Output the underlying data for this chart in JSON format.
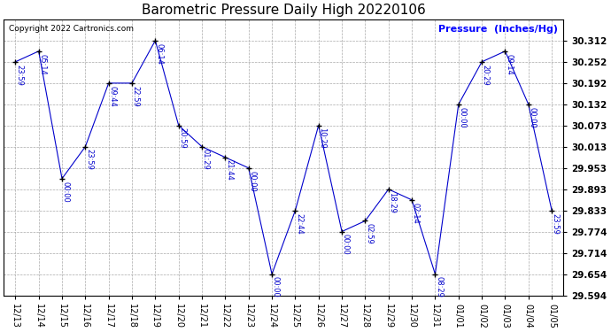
{
  "title": "Barometric Pressure Daily High 20220106",
  "ylabel": "Pressure  (Inches/Hg)",
  "copyright": "Copyright 2022 Cartronics.com",
  "x_labels": [
    "12/13",
    "12/14",
    "12/15",
    "12/16",
    "12/17",
    "12/18",
    "12/19",
    "12/20",
    "12/21",
    "12/22",
    "12/23",
    "12/24",
    "12/25",
    "12/26",
    "12/27",
    "12/28",
    "12/29",
    "12/30",
    "12/31",
    "01/01",
    "01/02",
    "01/03",
    "01/04",
    "01/05"
  ],
  "x_values": [
    0,
    1,
    2,
    3,
    4,
    5,
    6,
    7,
    8,
    9,
    10,
    11,
    12,
    13,
    14,
    15,
    16,
    17,
    18,
    19,
    20,
    21,
    22,
    23
  ],
  "y_values": [
    30.252,
    30.282,
    29.923,
    30.013,
    30.192,
    30.192,
    30.312,
    30.073,
    30.013,
    29.983,
    29.953,
    29.654,
    29.833,
    30.073,
    29.774,
    29.804,
    29.893,
    29.863,
    29.654,
    30.132,
    30.252,
    30.282,
    30.132,
    29.833
  ],
  "time_labels": [
    "23:59",
    "05:14",
    "00:00",
    "23:59",
    "09:44",
    "22:59",
    "06:14",
    "20:59",
    "01:29",
    "21:44",
    "00:00",
    "00:00",
    "22:44",
    "10:29",
    "00:00",
    "02:59",
    "18:29",
    "02:14",
    "08:29",
    "00:00",
    "20:29",
    "09:14",
    "00:00",
    "23:59"
  ],
  "line_color": "#0000cc",
  "marker_color": "#000000",
  "bg_color": "#ffffff",
  "grid_color": "#aaaaaa",
  "title_color": "#000000",
  "ylabel_color": "#0000ff",
  "copyright_color": "#000000",
  "ylim_min": 29.594,
  "ylim_max": 30.372,
  "yticks": [
    29.594,
    29.654,
    29.714,
    29.774,
    29.833,
    29.893,
    29.953,
    30.013,
    30.073,
    30.132,
    30.192,
    30.252,
    30.312
  ]
}
